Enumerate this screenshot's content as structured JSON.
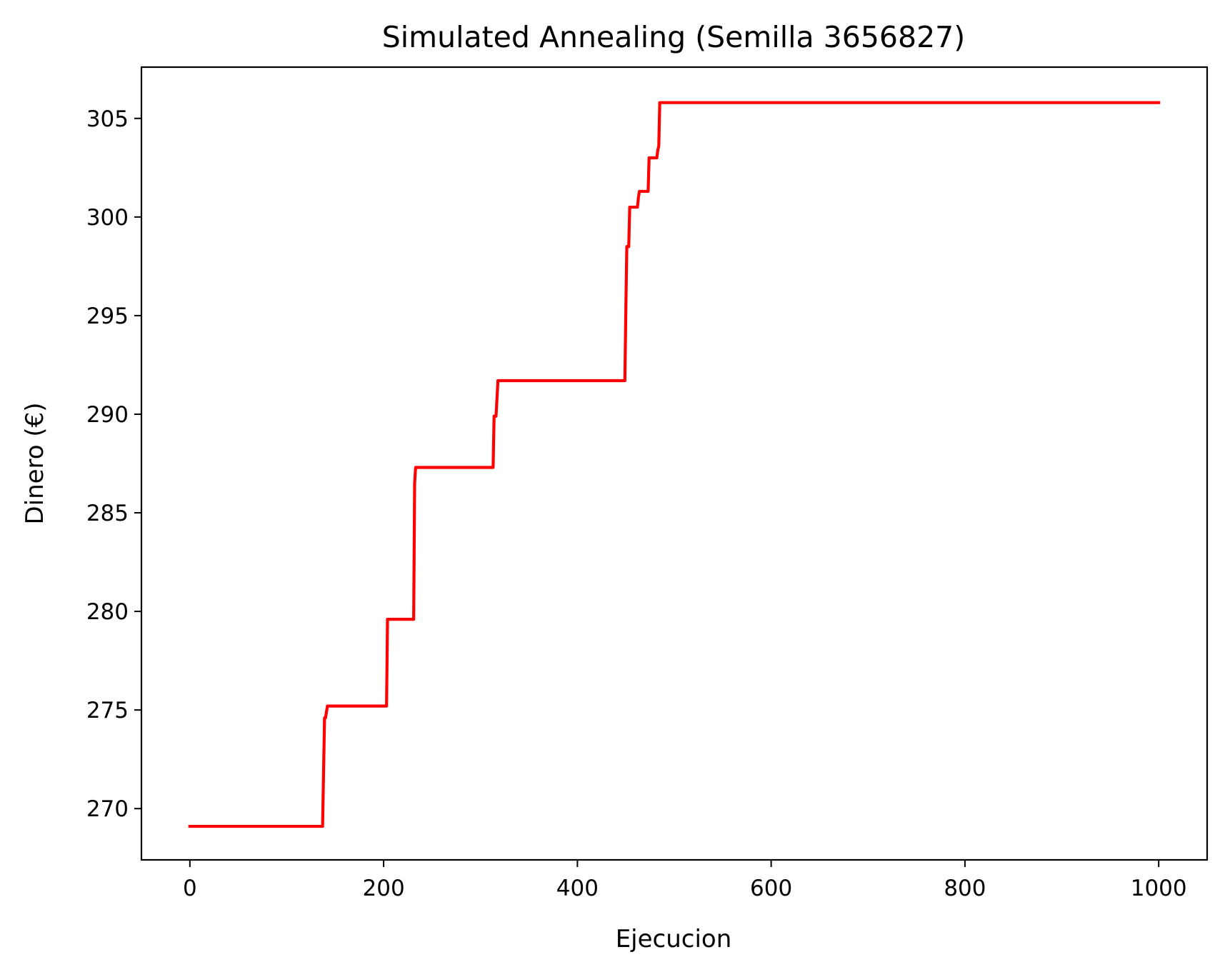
{
  "chart_data": {
    "type": "line",
    "title": "Simulated Annealing (Semilla 3656827)",
    "xlabel": "Ejecucion",
    "ylabel": "Dinero (€)",
    "xlim": [
      -50,
      1050
    ],
    "ylim": [
      267.4,
      307.6
    ],
    "xticks": [
      0,
      200,
      400,
      600,
      800,
      1000
    ],
    "yticks": [
      270,
      275,
      280,
      285,
      290,
      295,
      300,
      305
    ],
    "grid": false,
    "legend": "none",
    "series": [
      {
        "color": "#ff0000",
        "x": [
          0,
          137,
          139,
          140,
          142,
          143,
          203,
          204,
          231,
          232,
          233,
          313,
          314,
          316,
          318,
          449,
          450,
          451,
          452,
          453,
          454,
          456,
          457,
          462,
          463,
          464,
          465,
          472,
          473,
          474,
          479,
          480,
          482,
          483,
          484,
          485,
          486,
          1000
        ],
        "y": [
          269.1,
          269.1,
          274.6,
          274.6,
          275.2,
          275.2,
          275.2,
          279.6,
          279.6,
          286.5,
          287.3,
          287.3,
          289.9,
          289.9,
          291.7,
          291.7,
          295.3,
          298.5,
          298.5,
          298.5,
          300.5,
          300.5,
          300.5,
          300.5,
          301.0,
          301.3,
          301.3,
          301.3,
          301.3,
          303.0,
          303.0,
          303.0,
          303.0,
          303.4,
          303.6,
          305.8,
          305.8,
          305.8
        ]
      }
    ]
  }
}
